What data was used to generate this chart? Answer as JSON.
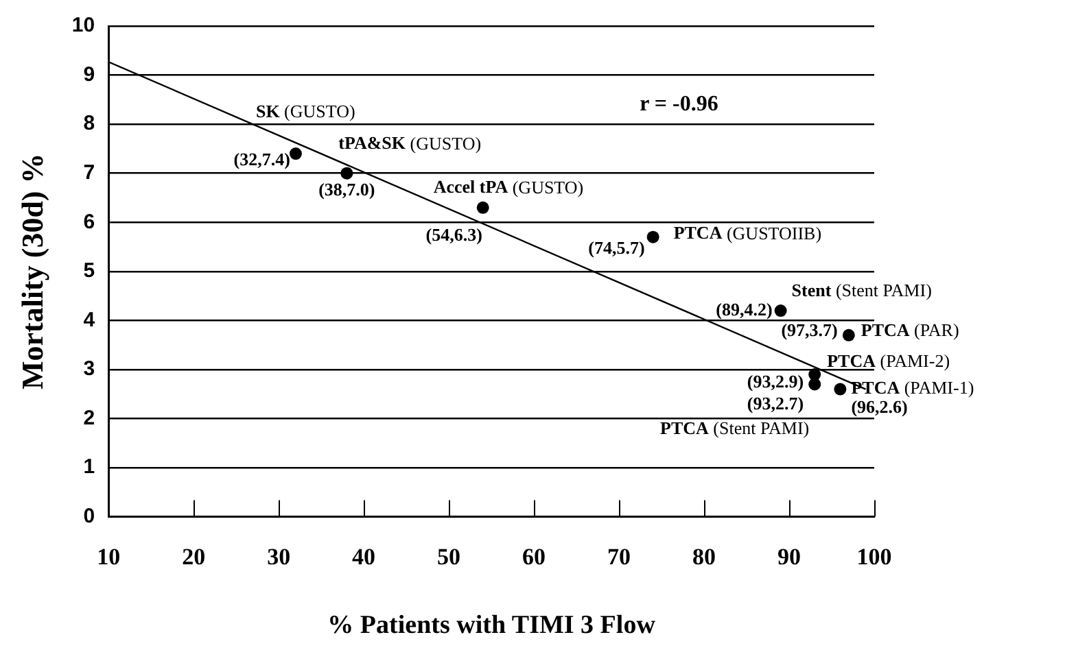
{
  "chart_data": {
    "type": "scatter",
    "xlabel": "% Patients with TIMI 3 Flow",
    "ylabel": "Mortality (30d) %",
    "x": [
      32,
      38,
      54,
      74,
      89,
      97,
      93,
      93,
      96
    ],
    "series": [
      {
        "type": "scatter",
        "color": "#000000",
        "values": [
          7.4,
          7.0,
          6.3,
          5.7,
          4.2,
          3.7,
          2.9,
          2.7,
          2.6
        ],
        "value_labels": [
          "(32,7.4)",
          "(38,7.0)",
          "(54,6.3)",
          "(74,5.7)",
          "(89,4.2)",
          "(97,3.7)",
          "(93,2.9)",
          "(93,2.7)",
          "(96,2.6)"
        ]
      },
      {
        "type": "line",
        "color": "#000000",
        "marker": "none",
        "x": [
          10,
          99
        ],
        "values": [
          9.27,
          2.6
        ]
      }
    ],
    "xlim": [
      10,
      100
    ],
    "xticks": [
      10,
      20,
      30,
      40,
      50,
      60,
      70,
      80,
      90,
      100
    ],
    "ylim": [
      0,
      10
    ],
    "yticks": [
      0,
      1,
      2,
      3,
      4,
      5,
      6,
      7,
      8,
      9,
      10
    ],
    "grid": "y",
    "marker": "circle",
    "annotations": [
      {
        "text": "SK (GUSTO)",
        "x": 32,
        "y": 7.4
      },
      {
        "text": "tPA&SK (GUSTO)",
        "x": 38,
        "y": 7.0
      },
      {
        "text": "Accel tPA (GUSTO)",
        "x": 54,
        "y": 6.3
      },
      {
        "text": "PTCA (GUSTOIIB)",
        "x": 74,
        "y": 5.7
      },
      {
        "text": "Stent (Stent PAMI)",
        "x": 89,
        "y": 4.2
      },
      {
        "text": "PTCA (PAR)",
        "x": 97,
        "y": 3.7
      },
      {
        "text": "PTCA (PAMI-2)",
        "x": 93,
        "y": 2.9
      },
      {
        "text": "PTCA (Stent PAMI)",
        "x": 93,
        "y": 2.7
      },
      {
        "text": "PTCA (PAMI-1)",
        "x": 96,
        "y": 2.6
      },
      "r = -0.96"
    ]
  }
}
